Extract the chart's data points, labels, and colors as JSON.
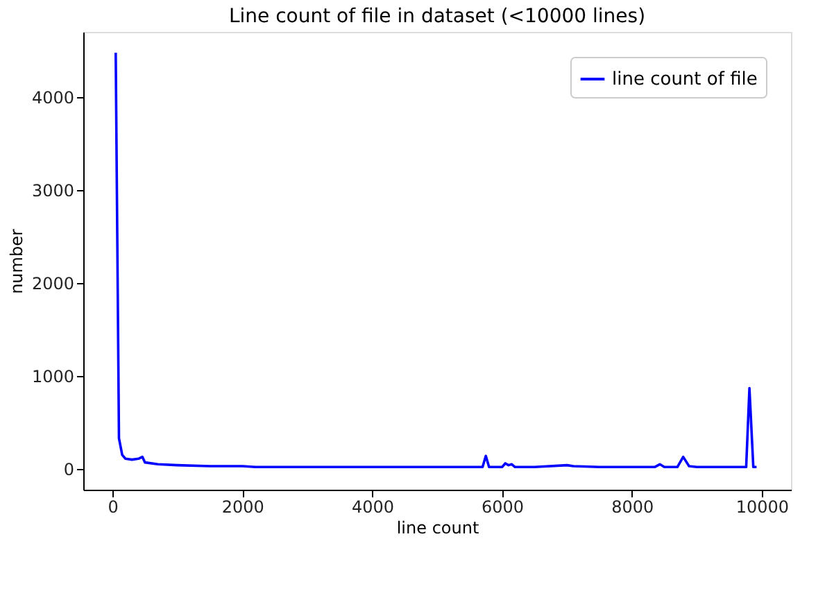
{
  "chart_data": {
    "type": "line",
    "title": "Line count of file in dataset (<10000 lines)",
    "xlabel": "line count",
    "ylabel": "number",
    "series": [
      {
        "name": "line count of file",
        "color": "#0000ff",
        "x": [
          50,
          100,
          150,
          200,
          300,
          400,
          460,
          500,
          700,
          1000,
          1500,
          2000,
          2200,
          2500,
          3000,
          3500,
          4000,
          4500,
          5000,
          5500,
          5700,
          5750,
          5800,
          5900,
          6000,
          6050,
          6100,
          6150,
          6200,
          6300,
          6500,
          7000,
          7100,
          7500,
          8000,
          8350,
          8430,
          8500,
          8700,
          8790,
          8880,
          9000,
          9500,
          9760,
          9810,
          9870,
          9920
        ],
        "values": [
          4480,
          330,
          150,
          110,
          100,
          110,
          130,
          70,
          50,
          40,
          30,
          30,
          20,
          20,
          20,
          20,
          20,
          20,
          20,
          20,
          20,
          140,
          20,
          20,
          20,
          60,
          40,
          50,
          20,
          20,
          20,
          40,
          30,
          20,
          20,
          20,
          50,
          20,
          20,
          130,
          30,
          20,
          20,
          20,
          870,
          20,
          20
        ]
      }
    ],
    "xlim": [
      -450,
      10450
    ],
    "ylim": [
      -224,
      4704
    ],
    "xticks": [
      0,
      2000,
      4000,
      6000,
      8000,
      10000
    ],
    "yticks": [
      0,
      1000,
      2000,
      3000,
      4000
    ],
    "legend": "top right",
    "grid": false,
    "line_style": "solid",
    "marker": "none"
  }
}
